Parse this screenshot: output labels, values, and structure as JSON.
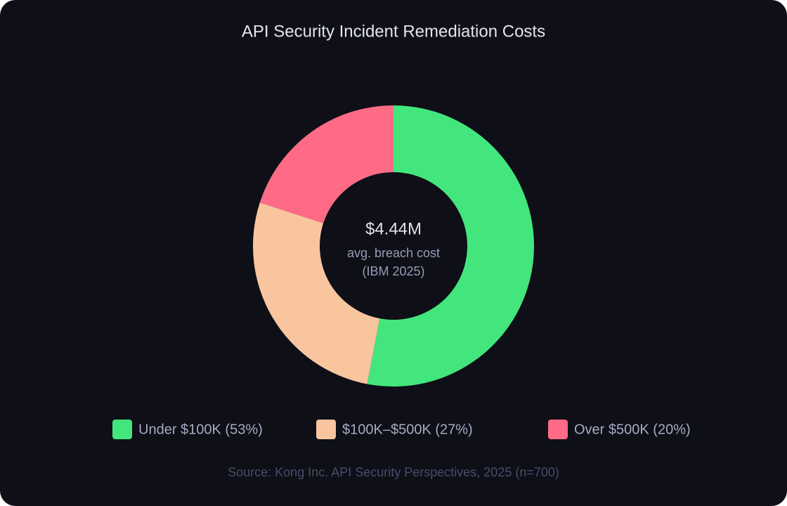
{
  "chart_data": {
    "type": "donut",
    "title": "API Security Incident Remediation Costs",
    "categories": [
      "Under $100K (53%)",
      "$100K–$500K (27%)",
      "Over $500K (20%)"
    ],
    "values": [
      53,
      27,
      20
    ],
    "colors": [
      "#43e67c",
      "#f8c59f",
      "#ff6b86"
    ],
    "center_label": [
      "$4.44M",
      "avg. breach cost",
      "(IBM 2025)"
    ],
    "source": "Source: Kong Inc. API Security Perspectives, 2025 (n=700)"
  }
}
